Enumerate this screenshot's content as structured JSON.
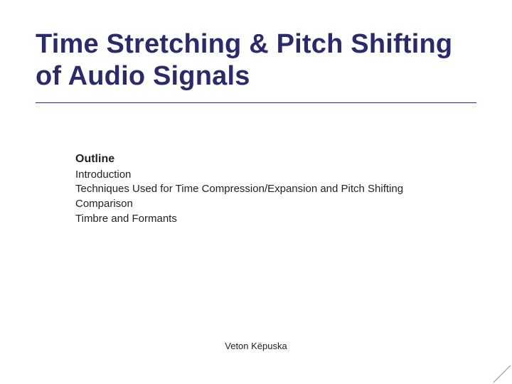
{
  "slide": {
    "title": "Time Stretching &  Pitch Shifting of Audio Signals",
    "title_color": "#2b2b6b",
    "title_fontsize": 38,
    "underline_color": "#2a2a6a",
    "background_color": "#ffffff",
    "outline": {
      "heading": "Outline",
      "heading_fontsize": 16,
      "item_fontsize": 15,
      "text_color": "#222222",
      "items": [
        "Introduction",
        "Techniques Used for Time Compression/Expansion and Pitch Shifting",
        "Comparison",
        "Timbre and Formants"
      ]
    },
    "footer": "Veton Këpuska",
    "footer_fontsize": 13
  }
}
